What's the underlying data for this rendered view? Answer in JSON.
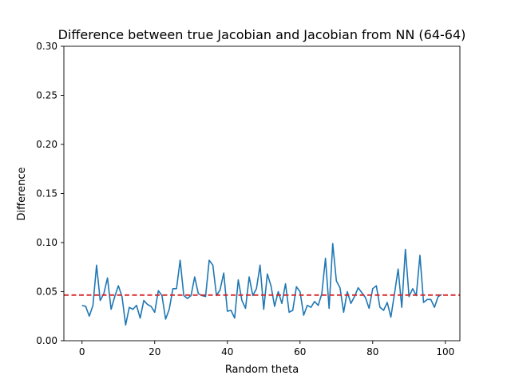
{
  "chart_data": {
    "type": "line",
    "title": "Difference between true Jacobian and Jacobian from NN (64-64)",
    "xlabel": "Random theta",
    "ylabel": "Difference",
    "xlim": [
      -5,
      104
    ],
    "ylim": [
      0.0,
      0.3
    ],
    "xticks": [
      0,
      20,
      40,
      60,
      80,
      100
    ],
    "xtick_labels": [
      "0",
      "20",
      "40",
      "60",
      "80",
      "100"
    ],
    "yticks": [
      0.0,
      0.05,
      0.1,
      0.15,
      0.2,
      0.25,
      0.3
    ],
    "ytick_labels": [
      "0.00",
      "0.05",
      "0.10",
      "0.15",
      "0.20",
      "0.25",
      "0.30"
    ],
    "grid": false,
    "series": [
      {
        "color": "#1f77b4",
        "x": [
          0,
          1,
          2,
          3,
          4,
          5,
          6,
          7,
          8,
          9,
          10,
          11,
          12,
          13,
          14,
          15,
          16,
          17,
          18,
          19,
          20,
          21,
          22,
          23,
          24,
          25,
          26,
          27,
          28,
          29,
          30,
          31,
          32,
          33,
          34,
          35,
          36,
          37,
          38,
          39,
          40,
          41,
          42,
          43,
          44,
          45,
          46,
          47,
          48,
          49,
          50,
          51,
          52,
          53,
          54,
          55,
          56,
          57,
          58,
          59,
          60,
          61,
          62,
          63,
          64,
          65,
          66,
          67,
          68,
          69,
          70,
          71,
          72,
          73,
          74,
          75,
          76,
          77,
          78,
          79,
          80,
          81,
          82,
          83,
          84,
          85,
          86,
          87,
          88,
          89,
          90,
          91,
          92,
          93,
          94,
          95,
          96,
          97,
          98,
          99
        ],
        "values": [
          0.036,
          0.035,
          0.025,
          0.036,
          0.077,
          0.041,
          0.048,
          0.064,
          0.032,
          0.045,
          0.056,
          0.045,
          0.016,
          0.034,
          0.032,
          0.036,
          0.023,
          0.041,
          0.037,
          0.035,
          0.029,
          0.051,
          0.046,
          0.022,
          0.032,
          0.053,
          0.053,
          0.082,
          0.046,
          0.043,
          0.046,
          0.065,
          0.048,
          0.046,
          0.045,
          0.082,
          0.077,
          0.046,
          0.052,
          0.069,
          0.03,
          0.031,
          0.023,
          0.062,
          0.041,
          0.033,
          0.065,
          0.046,
          0.053,
          0.077,
          0.032,
          0.068,
          0.056,
          0.035,
          0.05,
          0.038,
          0.058,
          0.029,
          0.031,
          0.055,
          0.05,
          0.026,
          0.036,
          0.034,
          0.04,
          0.036,
          0.048,
          0.084,
          0.033,
          0.099,
          0.061,
          0.054,
          0.029,
          0.05,
          0.038,
          0.045,
          0.054,
          0.049,
          0.044,
          0.033,
          0.053,
          0.056,
          0.034,
          0.031,
          0.039,
          0.024,
          0.048,
          0.073,
          0.034,
          0.093,
          0.045,
          0.053,
          0.046,
          0.087,
          0.039,
          0.042,
          0.042,
          0.034,
          0.045,
          0.047
        ]
      }
    ],
    "reference_line": {
      "y": 0.0465,
      "color": "#d62728",
      "style": "dashed"
    }
  }
}
